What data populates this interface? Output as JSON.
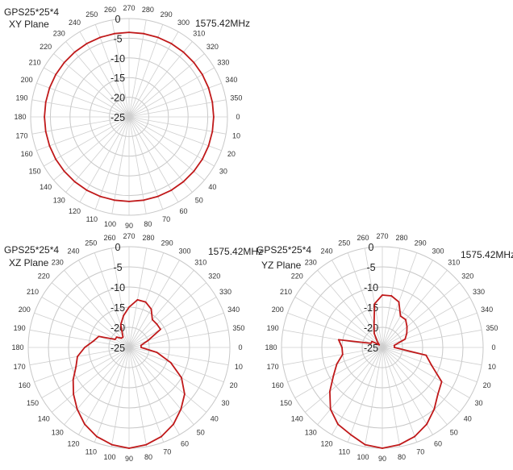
{
  "charts": [
    {
      "title": "GPS25*25*4",
      "subtitle": "XY Plane",
      "freq_label": "1575.42MHz",
      "r_ticks": [
        "0",
        "-5",
        "-10",
        "-15",
        "-20",
        "-25"
      ],
      "angle_labels": [
        "0",
        "10",
        "20",
        "30",
        "40",
        "50",
        "60",
        "70",
        "80",
        "90",
        "100",
        "110",
        "120",
        "130",
        "140",
        "150",
        "160",
        "170",
        "180",
        "190",
        "200",
        "210",
        "220",
        "230",
        "240",
        "250",
        "260",
        "270",
        "280",
        "290",
        "300",
        "310",
        "320",
        "330",
        "340",
        "350"
      ]
    },
    {
      "title": "GPS25*25*4",
      "subtitle": "XZ Plane",
      "freq_label": "1575.42MHz",
      "r_ticks": [
        "0",
        "-5",
        "-10",
        "-15",
        "-20",
        "-25"
      ],
      "angle_labels": [
        "0",
        "10",
        "20",
        "30",
        "40",
        "50",
        "60",
        "70",
        "80",
        "90",
        "100",
        "110",
        "120",
        "130",
        "140",
        "150",
        "160",
        "170",
        "180",
        "190",
        "200",
        "210",
        "220",
        "230",
        "240",
        "250",
        "260",
        "270",
        "280",
        "290",
        "300",
        "310",
        "320",
        "330",
        "340",
        "350"
      ]
    },
    {
      "title": "GPS25*25*4",
      "subtitle": "YZ Plane",
      "freq_label": "1575.42MHz",
      "r_ticks": [
        "0",
        "-5",
        "-10",
        "-15",
        "-20",
        "-25"
      ],
      "angle_labels": [
        "0",
        "10",
        "20",
        "30",
        "40",
        "50",
        "60",
        "70",
        "80",
        "90",
        "100",
        "110",
        "120",
        "130",
        "140",
        "150",
        "160",
        "170",
        "180",
        "190",
        "200",
        "210",
        "220",
        "230",
        "240",
        "250",
        "260",
        "270",
        "280",
        "290",
        "300",
        "310",
        "320",
        "330",
        "340",
        "350"
      ]
    }
  ],
  "chart_data": [
    {
      "type": "polar-line",
      "title": "GPS25*25*4",
      "subtitle": "XY Plane",
      "annotation": "1575.42MHz",
      "r_range": [
        -25,
        0
      ],
      "angle_unit": "deg",
      "line_color": "#c0191a",
      "series": [
        {
          "angles": [
            0,
            10,
            20,
            30,
            40,
            50,
            60,
            70,
            80,
            90,
            100,
            110,
            120,
            130,
            140,
            150,
            160,
            170,
            180,
            190,
            200,
            210,
            220,
            230,
            240,
            250,
            260,
            270,
            280,
            290,
            300,
            310,
            320,
            330,
            340,
            350
          ],
          "values": [
            -3.5,
            -3.5,
            -3.5,
            -3.5,
            -3.5,
            -3.5,
            -3.5,
            -3.5,
            -3.5,
            -3.5,
            -3.5,
            -3.5,
            -3.5,
            -3.5,
            -3.5,
            -3.5,
            -3.5,
            -3.5,
            -3.5,
            -3.5,
            -3.5,
            -3.5,
            -3.5,
            -3.5,
            -3.5,
            -3.5,
            -3.5,
            -3.5,
            -3.5,
            -3.5,
            -3.5,
            -3.5,
            -3.5,
            -3.5,
            -3.5,
            -3.5
          ]
        }
      ]
    },
    {
      "type": "polar-line",
      "title": "GPS25*25*4",
      "subtitle": "XZ Plane",
      "annotation": "1575.42MHz",
      "r_range": [
        -25,
        0
      ],
      "angle_unit": "deg",
      "line_color": "#c0191a",
      "series": [
        {
          "angles": [
            0,
            10,
            20,
            30,
            40,
            50,
            60,
            70,
            80,
            90,
            100,
            110,
            120,
            130,
            140,
            150,
            160,
            170,
            180,
            190,
            200,
            210,
            220,
            230,
            240,
            250,
            260,
            270,
            280,
            290,
            300,
            310,
            320,
            330,
            340,
            350
          ],
          "values": [
            -22,
            -18,
            -14,
            -10,
            -7,
            -5,
            -3,
            -1.5,
            -0.5,
            0,
            -0.5,
            -1.5,
            -3,
            -5,
            -7,
            -9,
            -11,
            -12,
            -14,
            -16,
            -17,
            -21,
            -21,
            -22,
            -22,
            -19,
            -17,
            -15,
            -13,
            -13,
            -14,
            -16,
            -16,
            -16,
            -20,
            -22
          ]
        }
      ]
    },
    {
      "type": "polar-line",
      "title": "GPS25*25*4",
      "subtitle": "YZ Plane",
      "annotation": "1575.42MHz",
      "r_range": [
        -25,
        0
      ],
      "angle_unit": "deg",
      "line_color": "#c0191a",
      "series": [
        {
          "angles": [
            0,
            10,
            20,
            30,
            40,
            50,
            60,
            70,
            80,
            90,
            100,
            110,
            120,
            130,
            140,
            150,
            160,
            170,
            180,
            190,
            200,
            210,
            220,
            230,
            240,
            250,
            260,
            270,
            280,
            290,
            300,
            310,
            320,
            330,
            340,
            350
          ],
          "values": [
            -22,
            -14,
            -12,
            -8,
            -7,
            -5,
            -3,
            -1.5,
            -0.5,
            0,
            -0.5,
            -2,
            -3,
            -5,
            -8,
            -11,
            -13,
            -15,
            -15,
            -14,
            -22,
            -22,
            -24,
            -23,
            -21,
            -19,
            -14,
            -12,
            -12,
            -13,
            -16,
            -16,
            -17,
            -18,
            -19,
            -22
          ]
        }
      ]
    }
  ]
}
